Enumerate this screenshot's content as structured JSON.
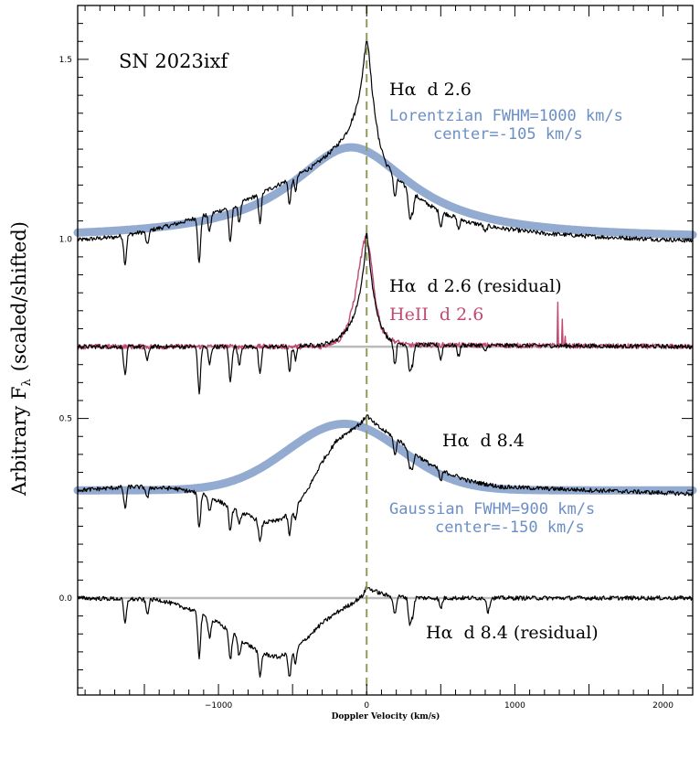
{
  "chart_data": {
    "type": "line",
    "title": "SN 2023ixf",
    "xlabel": "Doppler Velocity (km/s)",
    "ylabel": "Arbitrary F",
    "ylabel_subscript": "λ",
    "ylabel_suffix": "(scaled/shifted)",
    "xlim": [
      -1950,
      2200
    ],
    "ylim": [
      -0.27,
      1.65
    ],
    "x_ticks": [
      -1000,
      0,
      1000,
      2000
    ],
    "x_tick_labels": [
      "−1000",
      "0",
      "1000",
      "2000"
    ],
    "y_ticks": [
      0.0,
      0.5,
      1.0,
      1.5
    ],
    "y_tick_labels": [
      "0.0",
      "0.5",
      "1.0",
      "1.5"
    ],
    "vline": {
      "x": 0,
      "style": "dashed",
      "color": "#8f9c5a"
    },
    "colors": {
      "black": "#000000",
      "blue": "#8da6cf",
      "blue_text": "#6b8fc4",
      "red": "#c04a72",
      "gray": "#bbbbbb"
    },
    "series": [
      {
        "name": "Hα d 2.6",
        "color": "#000000",
        "baseline": 1.0,
        "points": [
          [
            -1950,
            0.997
          ],
          [
            -1700,
            1.005
          ],
          [
            -1500,
            1.02
          ],
          [
            -1300,
            1.04
          ],
          [
            -1100,
            1.065
          ],
          [
            -900,
            1.09
          ],
          [
            -700,
            1.13
          ],
          [
            -500,
            1.17
          ],
          [
            -350,
            1.205
          ],
          [
            -250,
            1.24
          ],
          [
            -180,
            1.27
          ],
          [
            -130,
            1.3
          ],
          [
            -80,
            1.35
          ],
          [
            -40,
            1.42
          ],
          [
            -15,
            1.51
          ],
          [
            0,
            1.56
          ],
          [
            15,
            1.52
          ],
          [
            40,
            1.4
          ],
          [
            80,
            1.28
          ],
          [
            130,
            1.21
          ],
          [
            200,
            1.17
          ],
          [
            300,
            1.13
          ],
          [
            400,
            1.1
          ],
          [
            500,
            1.075
          ],
          [
            700,
            1.045
          ],
          [
            900,
            1.03
          ],
          [
            1200,
            1.015
          ],
          [
            1600,
            1.005
          ],
          [
            2200,
            0.995
          ]
        ],
        "absorption": [
          [
            -1630,
            -0.08
          ],
          [
            -1480,
            -0.04
          ],
          [
            -1130,
            -0.13
          ],
          [
            -1060,
            -0.05
          ],
          [
            -920,
            -0.1
          ],
          [
            -860,
            -0.05
          ],
          [
            -720,
            -0.08
          ],
          [
            -520,
            -0.07
          ],
          [
            -480,
            -0.04
          ],
          [
            190,
            -0.06
          ],
          [
            290,
            -0.07
          ],
          [
            310,
            -0.05
          ],
          [
            500,
            -0.04
          ],
          [
            620,
            -0.03
          ],
          [
            800,
            -0.02
          ]
        ]
      },
      {
        "name": "Lorentzian FWHM=1000 km/s center=-105 km/s",
        "color": "#8da6cf",
        "profile": "lorentzian",
        "center": -105,
        "fwhm": 1000,
        "baseline": 1.0,
        "amplitude": 0.255
      },
      {
        "name": "Hα d 2.6 (residual)",
        "color": "#000000",
        "baseline": 0.7,
        "points": [
          [
            -1950,
            0.7
          ],
          [
            -600,
            0.7
          ],
          [
            -300,
            0.705
          ],
          [
            -200,
            0.72
          ],
          [
            -130,
            0.75
          ],
          [
            -80,
            0.79
          ],
          [
            -40,
            0.86
          ],
          [
            -15,
            0.94
          ],
          [
            0,
            1.02
          ],
          [
            15,
            0.96
          ],
          [
            40,
            0.86
          ],
          [
            80,
            0.78
          ],
          [
            130,
            0.73
          ],
          [
            200,
            0.71
          ],
          [
            300,
            0.705
          ],
          [
            2200,
            0.7
          ]
        ],
        "absorption": [
          [
            -1630,
            -0.08
          ],
          [
            -1480,
            -0.04
          ],
          [
            -1130,
            -0.13
          ],
          [
            -1060,
            -0.05
          ],
          [
            -920,
            -0.1
          ],
          [
            -860,
            -0.05
          ],
          [
            -720,
            -0.08
          ],
          [
            -520,
            -0.07
          ],
          [
            -480,
            -0.04
          ],
          [
            190,
            -0.06
          ],
          [
            290,
            -0.07
          ],
          [
            310,
            -0.05
          ],
          [
            500,
            -0.04
          ],
          [
            620,
            -0.03
          ],
          [
            800,
            -0.02
          ]
        ]
      },
      {
        "name": "HeII d 2.6",
        "color": "#c04a72",
        "baseline": 0.7,
        "points": [
          [
            -1950,
            0.7
          ],
          [
            -300,
            0.7
          ],
          [
            -180,
            0.72
          ],
          [
            -120,
            0.77
          ],
          [
            -80,
            0.84
          ],
          [
            -50,
            0.92
          ],
          [
            -20,
            0.99
          ],
          [
            0,
            1.01
          ],
          [
            25,
            0.95
          ],
          [
            60,
            0.83
          ],
          [
            100,
            0.75
          ],
          [
            160,
            0.72
          ],
          [
            260,
            0.705
          ],
          [
            2200,
            0.7
          ]
        ],
        "spikes": [
          [
            1290,
            0.12
          ],
          [
            1320,
            0.08
          ],
          [
            1340,
            0.03
          ]
        ]
      },
      {
        "name": "Hα d 8.4",
        "color": "#000000",
        "baseline": 0.3,
        "points": [
          [
            -1950,
            0.3
          ],
          [
            -1600,
            0.31
          ],
          [
            -1300,
            0.305
          ],
          [
            -1100,
            0.29
          ],
          [
            -900,
            0.25
          ],
          [
            -800,
            0.23
          ],
          [
            -700,
            0.21
          ],
          [
            -600,
            0.215
          ],
          [
            -500,
            0.24
          ],
          [
            -400,
            0.3
          ],
          [
            -300,
            0.38
          ],
          [
            -200,
            0.44
          ],
          [
            -100,
            0.47
          ],
          [
            -30,
            0.49
          ],
          [
            0,
            0.51
          ],
          [
            40,
            0.49
          ],
          [
            100,
            0.47
          ],
          [
            200,
            0.445
          ],
          [
            300,
            0.41
          ],
          [
            400,
            0.38
          ],
          [
            500,
            0.355
          ],
          [
            700,
            0.325
          ],
          [
            900,
            0.31
          ],
          [
            1200,
            0.305
          ],
          [
            2200,
            0.29
          ]
        ],
        "absorption": [
          [
            -1630,
            -0.06
          ],
          [
            -1480,
            -0.03
          ],
          [
            -1130,
            -0.1
          ],
          [
            -1060,
            -0.04
          ],
          [
            -920,
            -0.07
          ],
          [
            -860,
            -0.04
          ],
          [
            -720,
            -0.06
          ],
          [
            -520,
            -0.06
          ],
          [
            -480,
            -0.03
          ],
          [
            190,
            -0.05
          ],
          [
            290,
            -0.05
          ],
          [
            310,
            -0.04
          ],
          [
            500,
            -0.03
          ]
        ]
      },
      {
        "name": "Gaussian FWHM=900 km/s center=-150 km/s",
        "color": "#8da6cf",
        "profile": "gaussian",
        "center": -150,
        "fwhm": 900,
        "baseline": 0.3,
        "amplitude": 0.185
      },
      {
        "name": "Hα d 8.4 (residual)",
        "color": "#000000",
        "baseline": 0.0,
        "points": [
          [
            -1950,
            0.0
          ],
          [
            -1400,
            -0.005
          ],
          [
            -1200,
            -0.03
          ],
          [
            -1000,
            -0.07
          ],
          [
            -900,
            -0.1
          ],
          [
            -800,
            -0.13
          ],
          [
            -700,
            -0.155
          ],
          [
            -600,
            -0.165
          ],
          [
            -500,
            -0.15
          ],
          [
            -400,
            -0.11
          ],
          [
            -300,
            -0.07
          ],
          [
            -200,
            -0.04
          ],
          [
            -100,
            -0.015
          ],
          [
            -30,
            0.005
          ],
          [
            0,
            0.03
          ],
          [
            50,
            0.02
          ],
          [
            150,
            0.005
          ],
          [
            400,
            0.0
          ],
          [
            2200,
            0.0
          ]
        ],
        "absorption": [
          [
            -1630,
            -0.07
          ],
          [
            -1480,
            -0.04
          ],
          [
            -1130,
            -0.12
          ],
          [
            -1060,
            -0.05
          ],
          [
            -920,
            -0.08
          ],
          [
            -860,
            -0.05
          ],
          [
            -720,
            -0.07
          ],
          [
            -520,
            -0.07
          ],
          [
            -480,
            -0.04
          ],
          [
            190,
            -0.05
          ],
          [
            290,
            -0.07
          ],
          [
            310,
            -0.05
          ],
          [
            500,
            -0.03
          ],
          [
            820,
            -0.04
          ]
        ]
      }
    ],
    "annotations": {
      "ha_d26": "Hα  d 2.6",
      "lorentzian_line1": "Lorentzian FWHM=1000 km/s",
      "lorentzian_line2": "center=-105 km/s",
      "ha_d26_resid": "Hα  d 2.6 (residual)",
      "heii_d26": "HeII  d 2.6",
      "ha_d84": "Hα  d 8.4",
      "gaussian_line1": "Gaussian FWHM=900 km/s",
      "gaussian_line2": "center=-150 km/s",
      "ha_d84_resid": "Hα  d 8.4 (residual)"
    }
  }
}
